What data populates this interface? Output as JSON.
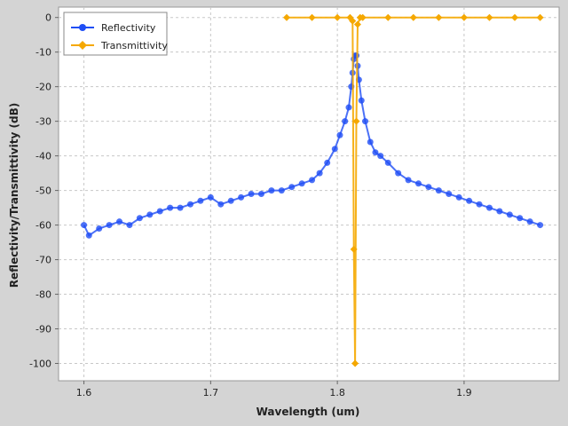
{
  "chart_data": {
    "type": "line",
    "title": "",
    "xlabel": "Wavelength (um)",
    "ylabel": "Reflectivity/Transmittivity (dB)",
    "xlim": [
      1.58,
      1.975
    ],
    "ylim": [
      -105,
      3
    ],
    "x_ticks": [
      "1.6",
      "1.7",
      "1.8",
      "1.9"
    ],
    "y_ticks": [
      "0",
      "-10",
      "-20",
      "-30",
      "-40",
      "-50",
      "-60",
      "-70",
      "-80",
      "-90",
      "-100"
    ],
    "grid": true,
    "legend_position": "top-left",
    "series": [
      {
        "name": "Reflectivity",
        "color": "#1f4ef5",
        "marker": "circle",
        "x": [
          1.6,
          1.604,
          1.612,
          1.62,
          1.628,
          1.636,
          1.644,
          1.652,
          1.66,
          1.668,
          1.676,
          1.684,
          1.692,
          1.7,
          1.708,
          1.716,
          1.724,
          1.732,
          1.74,
          1.748,
          1.756,
          1.764,
          1.772,
          1.78,
          1.786,
          1.792,
          1.798,
          1.802,
          1.806,
          1.809,
          1.811,
          1.812,
          1.813,
          1.814,
          1.815,
          1.816,
          1.817,
          1.819,
          1.822,
          1.826,
          1.83,
          1.834,
          1.84,
          1.848,
          1.856,
          1.864,
          1.872,
          1.88,
          1.888,
          1.896,
          1.904,
          1.912,
          1.92,
          1.928,
          1.936,
          1.944,
          1.952,
          1.96
        ],
        "y": [
          -60,
          -63,
          -61,
          -60,
          -59,
          -60,
          -58,
          -57,
          -56,
          -55,
          -55,
          -54,
          -53,
          -52,
          -54,
          -53,
          -52,
          -51,
          -51,
          -50,
          -50,
          -49,
          -48,
          -47,
          -45,
          -42,
          -38,
          -34,
          -30,
          -26,
          -20,
          -16,
          -12,
          -11,
          -11,
          -14,
          -18,
          -24,
          -30,
          -36,
          -39,
          -40,
          -42,
          -45,
          -47,
          -48,
          -49,
          -50,
          -51,
          -52,
          -53,
          -54,
          -55,
          -56,
          -57,
          -58,
          -59,
          -60
        ]
      },
      {
        "name": "Transmittivity",
        "color": "#f5a800",
        "marker": "diamond",
        "x": [
          1.76,
          1.78,
          1.8,
          1.81,
          1.812,
          1.813,
          1.814,
          1.815,
          1.816,
          1.818,
          1.82,
          1.84,
          1.86,
          1.88,
          1.9,
          1.92,
          1.94,
          1.96
        ],
        "y": [
          0,
          0,
          0,
          0,
          -1,
          -67,
          -100,
          -30,
          -2,
          0,
          0,
          0,
          0,
          0,
          0,
          0,
          0,
          0
        ]
      }
    ]
  }
}
